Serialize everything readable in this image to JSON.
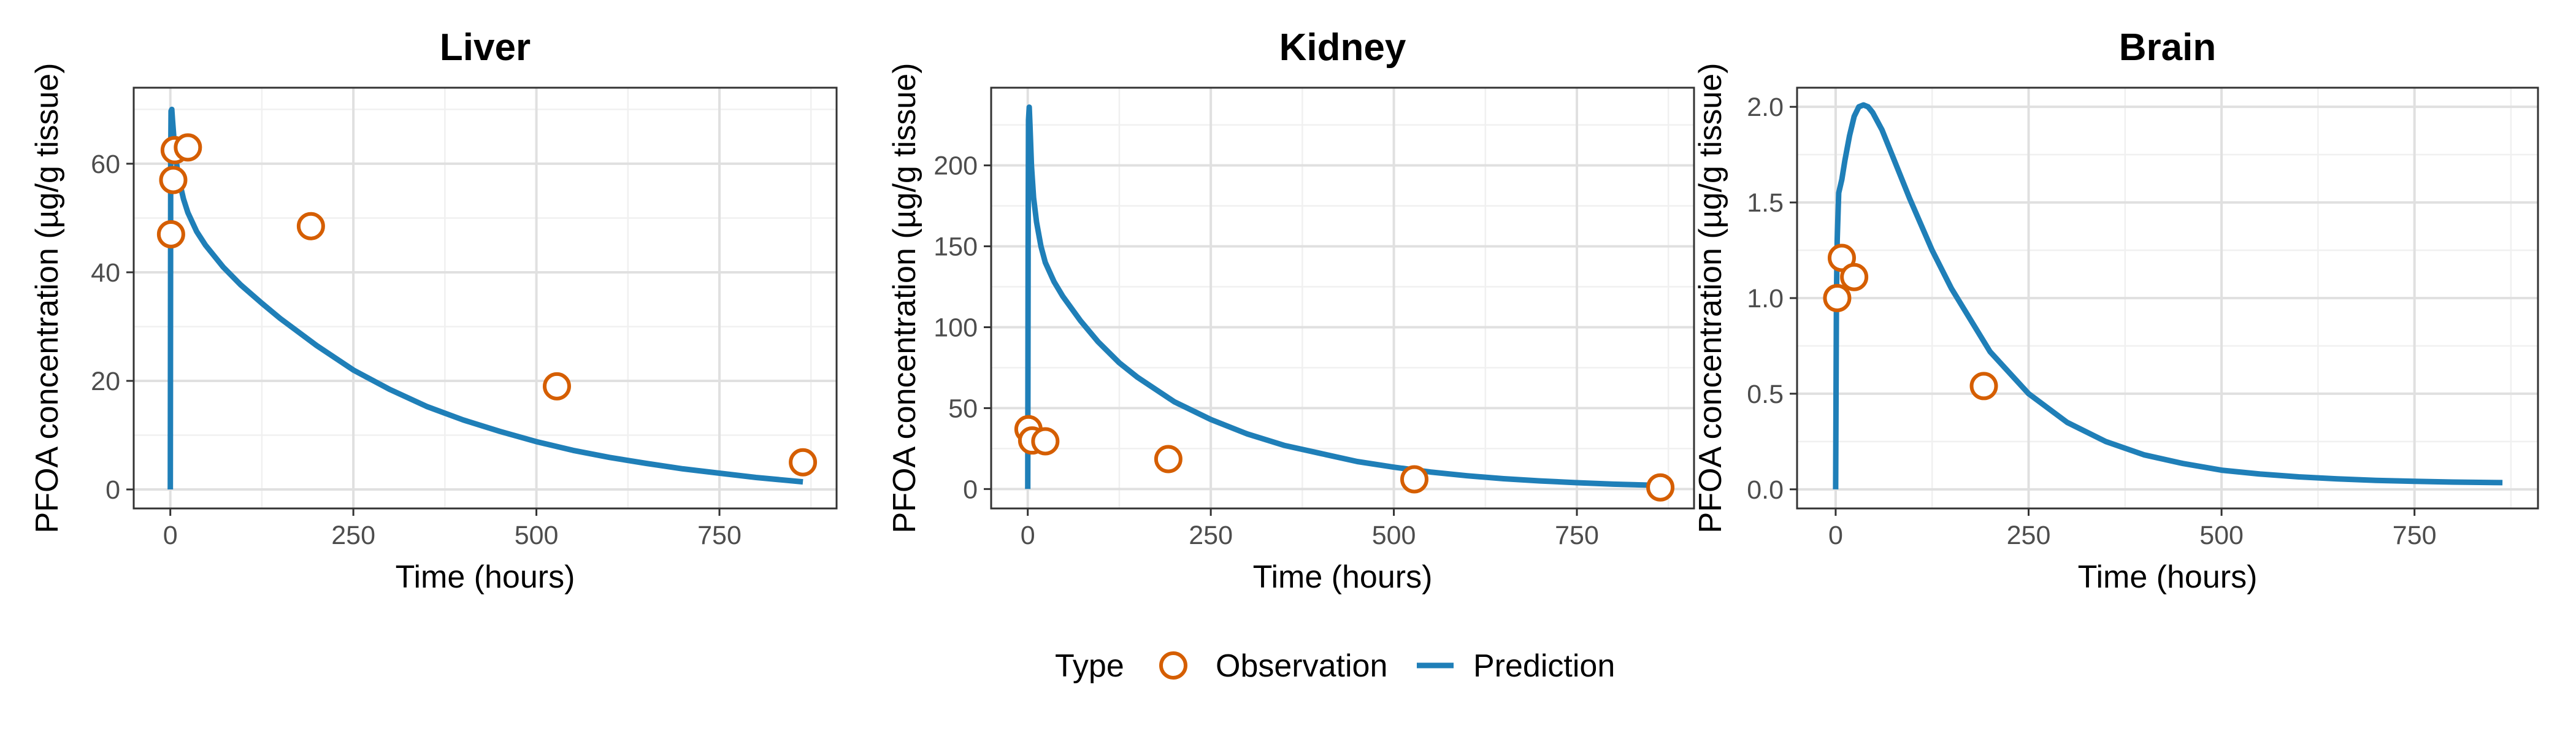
{
  "colors": {
    "observation": "#d55e00",
    "prediction": "#1f7fb8"
  },
  "legend": {
    "title": "Type",
    "observation_label": "Observation",
    "prediction_label": "Prediction"
  },
  "chart_data": [
    {
      "type": "line",
      "title": "Liver",
      "xlabel": "Time (hours)",
      "ylabel": "PFOA concentration (µg/g tissue)",
      "xlim": [
        -50,
        910
      ],
      "ylim": [
        -3.5,
        74
      ],
      "xticks": [
        0,
        250,
        500,
        750
      ],
      "yticks": [
        0,
        20,
        40,
        60
      ],
      "grid": true,
      "series": [
        {
          "name": "Prediction",
          "kind": "line",
          "x": [
            0,
            0.5,
            1,
            2,
            3,
            5,
            8,
            12,
            18,
            24,
            36,
            48,
            72,
            96,
            125,
            150,
            200,
            250,
            300,
            350,
            400,
            450,
            500,
            550,
            600,
            650,
            700,
            750,
            800,
            864
          ],
          "y": [
            0,
            60,
            69.7,
            70,
            68,
            64.5,
            60.5,
            57,
            53.5,
            51,
            47.5,
            45,
            41,
            37.7,
            34.3,
            31.5,
            26.5,
            22,
            18.4,
            15.3,
            12.8,
            10.7,
            8.8,
            7.2,
            5.9,
            4.8,
            3.8,
            3,
            2.2,
            1.4
          ]
        },
        {
          "name": "Observation",
          "kind": "points",
          "x": [
            1,
            4,
            6,
            24,
            192,
            528,
            864
          ],
          "y": [
            47,
            57,
            62.5,
            63,
            48.5,
            19,
            5
          ]
        }
      ]
    },
    {
      "type": "line",
      "title": "Kidney",
      "xlabel": "Time (hours)",
      "ylabel": "PFOA concentration (µg/g tissue)",
      "xlim": [
        -50,
        910
      ],
      "ylim": [
        -12,
        248
      ],
      "xticks": [
        0,
        250,
        500,
        750
      ],
      "yticks": [
        0,
        50,
        100,
        150,
        200
      ],
      "grid": true,
      "series": [
        {
          "name": "Prediction",
          "kind": "line",
          "x": [
            0,
            0.5,
            1,
            2,
            3,
            5,
            8,
            12,
            18,
            24,
            36,
            48,
            72,
            96,
            125,
            150,
            200,
            250,
            300,
            350,
            400,
            450,
            500,
            550,
            600,
            650,
            700,
            750,
            800,
            864
          ],
          "y": [
            0,
            150,
            228,
            236,
            225,
            200,
            180,
            165,
            150,
            140,
            128,
            119,
            104,
            91,
            78,
            69,
            54,
            43,
            34,
            27,
            22,
            17,
            13.5,
            10.5,
            8.2,
            6.4,
            5,
            3.9,
            3,
            2.2
          ]
        },
        {
          "name": "Observation",
          "kind": "points",
          "x": [
            1,
            6,
            24,
            192,
            528,
            864
          ],
          "y": [
            37,
            30,
            29.5,
            18.5,
            6,
            1
          ]
        }
      ]
    },
    {
      "type": "line",
      "title": "Brain",
      "xlabel": "Time (hours)",
      "ylabel": "PFOA concentration (µg/g tissue)",
      "xlim": [
        -50,
        910
      ],
      "ylim": [
        -0.1,
        2.1
      ],
      "xticks": [
        0,
        250,
        500,
        750
      ],
      "yticks": [
        0,
        0.5,
        1,
        1.5,
        2
      ],
      "ytick_labels": [
        "0.0",
        "0.5",
        "1.0",
        "1.5",
        "2.0"
      ],
      "grid": true,
      "series": [
        {
          "name": "Prediction",
          "kind": "line",
          "x": [
            0,
            1,
            2,
            4,
            8,
            12,
            18,
            24,
            30,
            36,
            42,
            48,
            60,
            72,
            96,
            125,
            150,
            200,
            250,
            300,
            350,
            400,
            450,
            500,
            550,
            600,
            650,
            700,
            750,
            800,
            864
          ],
          "y": [
            0,
            1.0,
            1.3,
            1.55,
            1.62,
            1.72,
            1.85,
            1.95,
            2.0,
            2.01,
            2.0,
            1.97,
            1.88,
            1.76,
            1.52,
            1.25,
            1.05,
            0.72,
            0.5,
            0.35,
            0.25,
            0.18,
            0.135,
            0.1,
            0.08,
            0.065,
            0.055,
            0.047,
            0.042,
            0.038,
            0.035
          ]
        },
        {
          "name": "Observation",
          "kind": "points",
          "x": [
            2,
            8,
            24,
            192
          ],
          "y": [
            1.0,
            1.21,
            1.11,
            0.54
          ]
        }
      ]
    }
  ]
}
